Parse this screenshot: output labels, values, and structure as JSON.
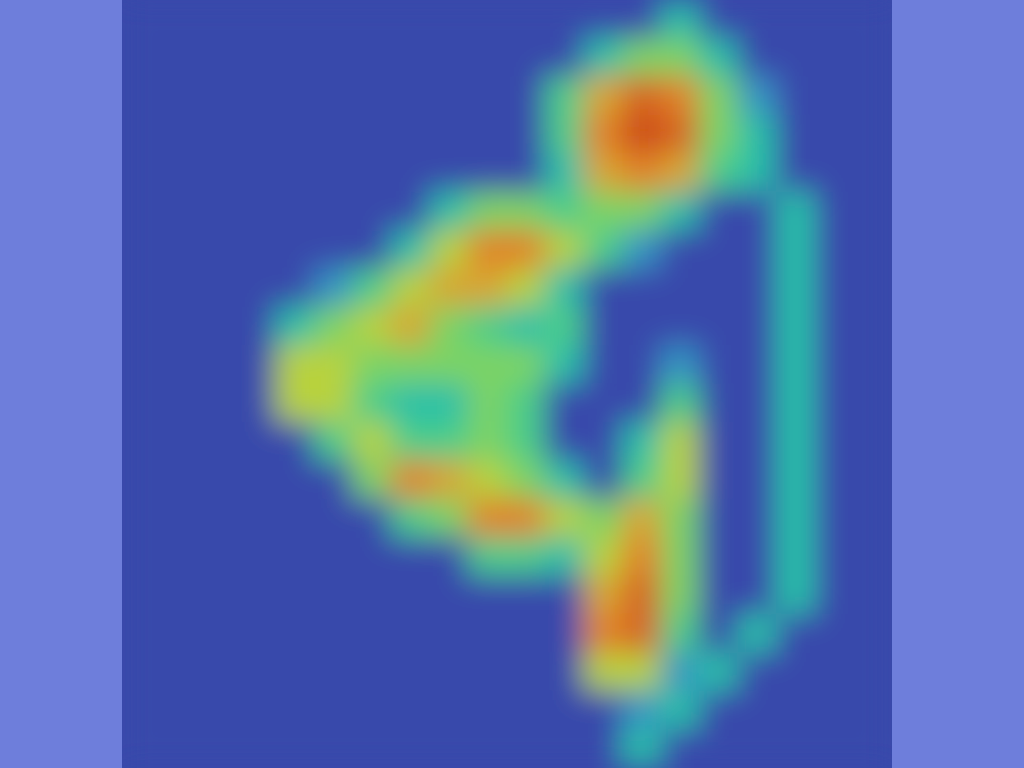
{
  "chart_data": {
    "type": "heatmap",
    "tick_labels": false,
    "zlim": [
      0,
      10
    ],
    "cells": [
      [
        0,
        0,
        0,
        0,
        0,
        0,
        0,
        0,
        0,
        0,
        0,
        0,
        0,
        0,
        3,
        0,
        0,
        0,
        0,
        0
      ],
      [
        0,
        0,
        0,
        0,
        0,
        0,
        0,
        0,
        0,
        0,
        0,
        0,
        3,
        5,
        5,
        3,
        0,
        0,
        0,
        0
      ],
      [
        0,
        0,
        0,
        0,
        0,
        0,
        0,
        0,
        0,
        0,
        0,
        4,
        7,
        9,
        8,
        5,
        2,
        0,
        0,
        0
      ],
      [
        0,
        0,
        0,
        0,
        0,
        0,
        0,
        0,
        0,
        0,
        0,
        4,
        8,
        10,
        9,
        5,
        3,
        0,
        0,
        0
      ],
      [
        0,
        0,
        0,
        0,
        0,
        0,
        0,
        0,
        0,
        0,
        0,
        3,
        7,
        8,
        7,
        4,
        3,
        0,
        0,
        0
      ],
      [
        0,
        0,
        0,
        0,
        0,
        0,
        0,
        0,
        3,
        5,
        5,
        4,
        5,
        5,
        3,
        0,
        0,
        3,
        0,
        0
      ],
      [
        0,
        0,
        0,
        0,
        0,
        0,
        0,
        3,
        6,
        8,
        8,
        6,
        4,
        2,
        0,
        0,
        0,
        3,
        0,
        0
      ],
      [
        0,
        0,
        0,
        0,
        0,
        2,
        4,
        6,
        7,
        7,
        6,
        3,
        0,
        0,
        0,
        0,
        0,
        3,
        0,
        0
      ],
      [
        0,
        0,
        0,
        0,
        3,
        5,
        6,
        7,
        5,
        4,
        3,
        4,
        0,
        0,
        0,
        0,
        0,
        3,
        0,
        0
      ],
      [
        0,
        0,
        0,
        0,
        6,
        6,
        5,
        5,
        5,
        5,
        5,
        3,
        0,
        0,
        2,
        0,
        0,
        3,
        0,
        0
      ],
      [
        0,
        0,
        0,
        0,
        6,
        6,
        4,
        3,
        3,
        5,
        4,
        0,
        0,
        0,
        4,
        0,
        0,
        3,
        0,
        0
      ],
      [
        0,
        0,
        0,
        0,
        0,
        4,
        6,
        4,
        4,
        5,
        4,
        0,
        0,
        3,
        6,
        0,
        0,
        3,
        0,
        0
      ],
      [
        0,
        0,
        0,
        0,
        0,
        0,
        5,
        8,
        7,
        6,
        5,
        3,
        0,
        4,
        6,
        0,
        0,
        3,
        0,
        0
      ],
      [
        0,
        0,
        0,
        0,
        0,
        0,
        0,
        4,
        5,
        8,
        8,
        6,
        5,
        7,
        5,
        0,
        0,
        3,
        0,
        0
      ],
      [
        0,
        0,
        0,
        0,
        0,
        0,
        0,
        0,
        0,
        4,
        4,
        3,
        6,
        8,
        5,
        0,
        0,
        3,
        0,
        0
      ],
      [
        0,
        0,
        0,
        0,
        0,
        0,
        0,
        0,
        0,
        0,
        0,
        0,
        7,
        9,
        5,
        0,
        0,
        3,
        0,
        0
      ],
      [
        0,
        0,
        0,
        0,
        0,
        0,
        0,
        0,
        0,
        0,
        0,
        0,
        8,
        9,
        4,
        0,
        3,
        0,
        0,
        0
      ],
      [
        0,
        0,
        0,
        0,
        0,
        0,
        0,
        0,
        0,
        0,
        0,
        0,
        6,
        6,
        2,
        3,
        0,
        0,
        0,
        0
      ],
      [
        0,
        0,
        0,
        0,
        0,
        0,
        0,
        0,
        0,
        0,
        0,
        0,
        0,
        2,
        3,
        0,
        0,
        0,
        0,
        0
      ],
      [
        0,
        0,
        0,
        0,
        0,
        0,
        0,
        0,
        0,
        0,
        0,
        0,
        0,
        3,
        0,
        0,
        0,
        0,
        0,
        0
      ]
    ]
  }
}
